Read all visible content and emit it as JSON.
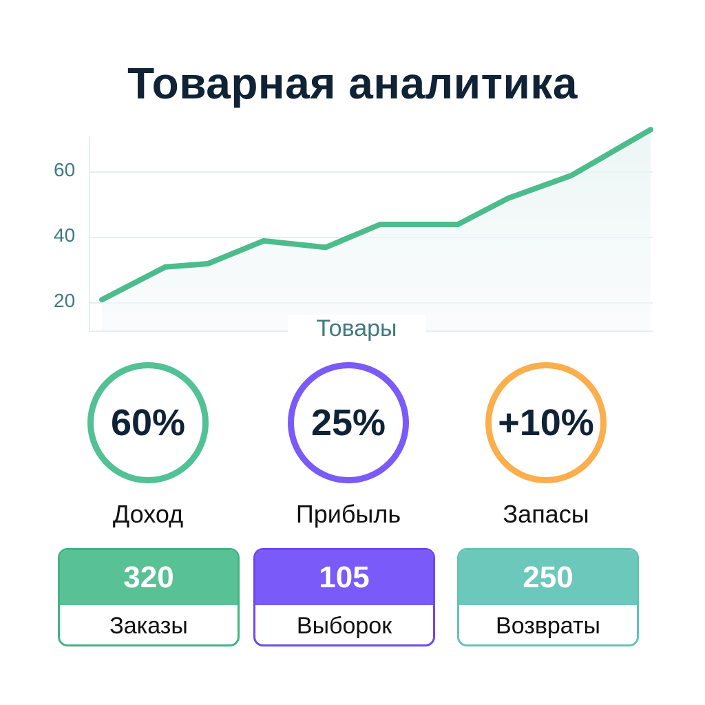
{
  "page": {
    "title": "Товарная аналитика"
  },
  "chart_data": {
    "type": "area",
    "title": "Товарная аналитика",
    "xlabel": "Товары",
    "ylabel": "",
    "y_ticks": [
      20,
      40,
      60
    ],
    "ylim": [
      12,
      74
    ],
    "grid": true,
    "x": [
      1,
      2,
      3,
      4,
      5,
      6,
      7,
      8,
      9,
      10
    ],
    "series": [
      {
        "name": "Товары",
        "values": [
          21,
          31,
          32,
          39,
          37,
          44,
          44,
          52,
          59,
          73
        ],
        "color": "#4cbc8c"
      }
    ]
  },
  "axis": {
    "y_ticks": [
      "60",
      "40",
      "20"
    ],
    "x_label": "Товары"
  },
  "kpis": [
    {
      "value": "60%",
      "label": "Доход",
      "color": "#52c195"
    },
    {
      "value": "25%",
      "label": "Прибыль",
      "color": "#7a5af8"
    },
    {
      "value": "+10%",
      "label": "Запасы",
      "color": "#fbae4c"
    }
  ],
  "cards": [
    {
      "value": "320",
      "label": "Заказы",
      "color": "#58c195",
      "border": "#3fb485"
    },
    {
      "value": "105",
      "label": "Выборок",
      "color": "#7a5af8",
      "border": "#6a48f2"
    },
    {
      "value": "250",
      "label": "Возвраты",
      "color": "#6cc8bb",
      "border": "#63c3b4"
    }
  ]
}
